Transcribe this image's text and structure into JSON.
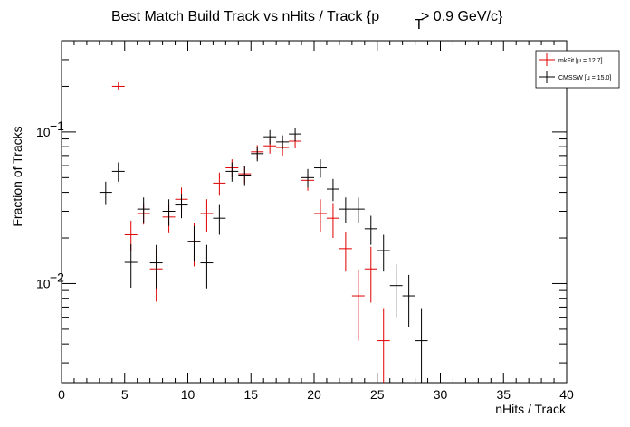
{
  "chart_data": {
    "type": "scatter",
    "title_main": "Best Match Build Track vs nHits / Track {p",
    "title_sub": "T",
    "title_tail": " > 0.9 GeV/c}",
    "xlabel": "nHits / Track",
    "ylabel": "Fraction of Tracks",
    "xlim": [
      0,
      40
    ],
    "ylim": [
      0.00222,
      0.4
    ],
    "yscale": "log",
    "x_ticks": [
      0,
      5,
      10,
      15,
      20,
      25,
      30,
      35,
      40
    ],
    "x_tick_labels": [
      "0",
      "5",
      "10",
      "15",
      "20",
      "25",
      "30",
      "35",
      "40"
    ],
    "y_tick_labels": [
      {
        "value": 0.1,
        "base": "10",
        "exp": "−1"
      },
      {
        "value": 0.01,
        "base": "10",
        "exp": "−2"
      }
    ],
    "grid": false,
    "legend_position": "top-right",
    "series": [
      {
        "name": "mkFit",
        "legend_label": "mkFit  [μ = 12.7]",
        "color": "#e00000",
        "points": [
          {
            "x": 4.5,
            "y": 0.2,
            "lo": 0.188,
            "hi": 0.212
          },
          {
            "x": 5.5,
            "y": 0.021,
            "lo": 0.0165,
            "hi": 0.026
          },
          {
            "x": 6.5,
            "y": 0.029,
            "lo": 0.0245,
            "hi": 0.034
          },
          {
            "x": 7.5,
            "y": 0.0125,
            "lo": 0.0076,
            "hi": 0.017
          },
          {
            "x": 8.5,
            "y": 0.0275,
            "lo": 0.0215,
            "hi": 0.033
          },
          {
            "x": 9.5,
            "y": 0.036,
            "lo": 0.029,
            "hi": 0.043
          },
          {
            "x": 10.5,
            "y": 0.019,
            "lo": 0.013,
            "hi": 0.025
          },
          {
            "x": 11.5,
            "y": 0.029,
            "lo": 0.022,
            "hi": 0.036
          },
          {
            "x": 12.5,
            "y": 0.046,
            "lo": 0.038,
            "hi": 0.054
          },
          {
            "x": 13.5,
            "y": 0.058,
            "lo": 0.05,
            "hi": 0.066
          },
          {
            "x": 14.5,
            "y": 0.053,
            "lo": 0.046,
            "hi": 0.06
          },
          {
            "x": 15.5,
            "y": 0.074,
            "lo": 0.066,
            "hi": 0.082
          },
          {
            "x": 16.5,
            "y": 0.081,
            "lo": 0.072,
            "hi": 0.09
          },
          {
            "x": 17.5,
            "y": 0.079,
            "lo": 0.07,
            "hi": 0.088
          },
          {
            "x": 18.5,
            "y": 0.087,
            "lo": 0.078,
            "hi": 0.096
          },
          {
            "x": 19.5,
            "y": 0.048,
            "lo": 0.041,
            "hi": 0.055
          },
          {
            "x": 20.5,
            "y": 0.029,
            "lo": 0.022,
            "hi": 0.036
          },
          {
            "x": 21.5,
            "y": 0.027,
            "lo": 0.02,
            "hi": 0.034
          },
          {
            "x": 22.5,
            "y": 0.017,
            "lo": 0.012,
            "hi": 0.022
          },
          {
            "x": 23.5,
            "y": 0.0083,
            "lo": 0.0042,
            "hi": 0.0124
          },
          {
            "x": 24.5,
            "y": 0.0125,
            "lo": 0.0075,
            "hi": 0.0175
          },
          {
            "x": 25.5,
            "y": 0.0042,
            "lo": 0.0015,
            "hi": 0.0068
          }
        ]
      },
      {
        "name": "CMSSW",
        "legend_label": "CMSSW  [μ = 15.0]",
        "color": "#000000",
        "points": [
          {
            "x": 3.5,
            "y": 0.04,
            "lo": 0.033,
            "hi": 0.047
          },
          {
            "x": 4.5,
            "y": 0.055,
            "lo": 0.047,
            "hi": 0.063
          },
          {
            "x": 5.5,
            "y": 0.0138,
            "lo": 0.0094,
            "hi": 0.0182
          },
          {
            "x": 6.5,
            "y": 0.031,
            "lo": 0.025,
            "hi": 0.037
          },
          {
            "x": 7.5,
            "y": 0.0137,
            "lo": 0.0093,
            "hi": 0.018
          },
          {
            "x": 8.5,
            "y": 0.03,
            "lo": 0.024,
            "hi": 0.036
          },
          {
            "x": 9.5,
            "y": 0.033,
            "lo": 0.027,
            "hi": 0.039
          },
          {
            "x": 10.5,
            "y": 0.019,
            "lo": 0.014,
            "hi": 0.024
          },
          {
            "x": 11.5,
            "y": 0.0137,
            "lo": 0.0093,
            "hi": 0.018
          },
          {
            "x": 12.5,
            "y": 0.027,
            "lo": 0.021,
            "hi": 0.033
          },
          {
            "x": 13.5,
            "y": 0.055,
            "lo": 0.047,
            "hi": 0.063
          },
          {
            "x": 14.5,
            "y": 0.052,
            "lo": 0.044,
            "hi": 0.06
          },
          {
            "x": 15.5,
            "y": 0.072,
            "lo": 0.064,
            "hi": 0.08
          },
          {
            "x": 16.5,
            "y": 0.093,
            "lo": 0.083,
            "hi": 0.103
          },
          {
            "x": 17.5,
            "y": 0.086,
            "lo": 0.077,
            "hi": 0.095
          },
          {
            "x": 18.5,
            "y": 0.097,
            "lo": 0.087,
            "hi": 0.107
          },
          {
            "x": 19.5,
            "y": 0.05,
            "lo": 0.043,
            "hi": 0.057
          },
          {
            "x": 20.5,
            "y": 0.058,
            "lo": 0.05,
            "hi": 0.066
          },
          {
            "x": 21.5,
            "y": 0.042,
            "lo": 0.035,
            "hi": 0.049
          },
          {
            "x": 22.5,
            "y": 0.031,
            "lo": 0.025,
            "hi": 0.037
          },
          {
            "x": 23.5,
            "y": 0.031,
            "lo": 0.025,
            "hi": 0.037
          },
          {
            "x": 24.5,
            "y": 0.023,
            "lo": 0.018,
            "hi": 0.028
          },
          {
            "x": 25.5,
            "y": 0.0165,
            "lo": 0.012,
            "hi": 0.021
          },
          {
            "x": 26.5,
            "y": 0.0097,
            "lo": 0.006,
            "hi": 0.0134
          },
          {
            "x": 27.5,
            "y": 0.0083,
            "lo": 0.0052,
            "hi": 0.0114
          },
          {
            "x": 28.5,
            "y": 0.0042,
            "lo": 0.0015,
            "hi": 0.0068
          }
        ]
      }
    ]
  }
}
